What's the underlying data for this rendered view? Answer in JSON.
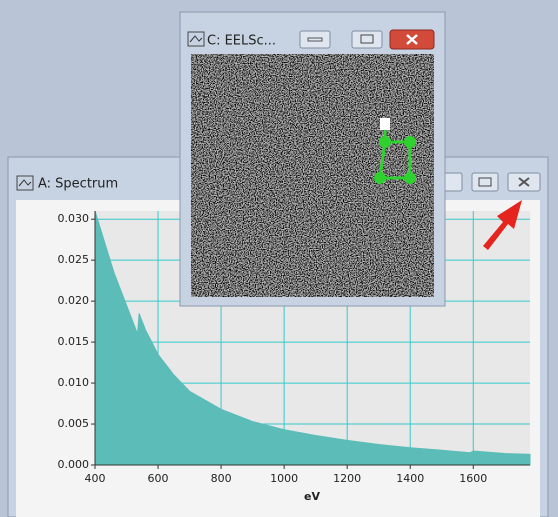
{
  "spectrum_window": {
    "title": "A: Spectrum"
  },
  "image_window": {
    "title": "C: EELSc..."
  },
  "chart_data": {
    "type": "area",
    "x_label": "eV",
    "color": "#5bbcb8",
    "grid": true,
    "xlim": [
      400,
      1780
    ],
    "ylim": [
      0,
      0.031
    ],
    "xticks": [
      400,
      600,
      800,
      1000,
      1200,
      1400,
      1600
    ],
    "yticks": [
      {
        "value": 0,
        "label": "0.000"
      },
      {
        "value": 0.005,
        "label": "0.005"
      },
      {
        "value": 0.01,
        "label": "0.010"
      },
      {
        "value": 0.015,
        "label": "0.015"
      },
      {
        "value": 0.02,
        "label": "0.020"
      },
      {
        "value": 0.025,
        "label": "0.025"
      },
      {
        "value": 0.03,
        "label": "0.030"
      }
    ],
    "x": [
      400,
      420,
      440,
      460,
      480,
      500,
      520,
      535,
      540,
      560,
      600,
      650,
      700,
      800,
      900,
      1000,
      1100,
      1200,
      1300,
      1400,
      1500,
      1590,
      1600,
      1700,
      1780
    ],
    "values": [
      0.031,
      0.0285,
      0.026,
      0.0235,
      0.0215,
      0.0195,
      0.0175,
      0.016,
      0.0185,
      0.0165,
      0.0135,
      0.011,
      0.009,
      0.0068,
      0.0053,
      0.0043,
      0.0036,
      0.003,
      0.0025,
      0.0021,
      0.0018,
      0.0015,
      0.0017,
      0.0014,
      0.0013
    ]
  }
}
